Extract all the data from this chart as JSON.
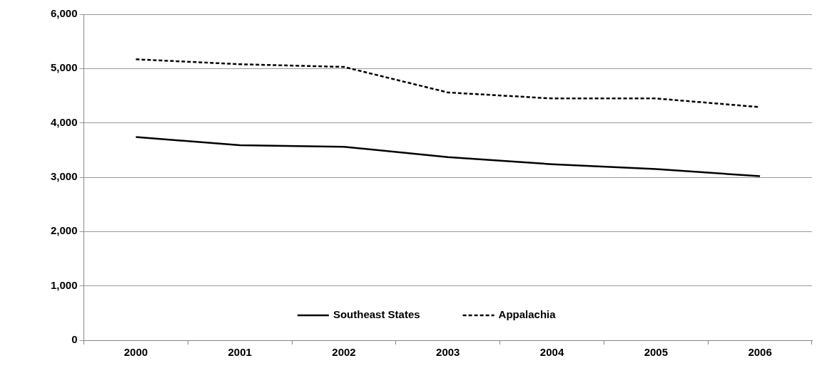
{
  "chart_data": {
    "type": "line",
    "categories": [
      "2000",
      "2001",
      "2002",
      "2003",
      "2004",
      "2005",
      "2006"
    ],
    "series": [
      {
        "name": "Southeast States",
        "color": "#000000",
        "line_style": "solid",
        "values": [
          3740,
          3590,
          3560,
          3370,
          3240,
          3150,
          3020
        ]
      },
      {
        "name": "Appalachia",
        "color": "#000000",
        "line_style": "dashed",
        "values": [
          5170,
          5080,
          5030,
          4560,
          4450,
          4450,
          4290
        ]
      }
    ],
    "ylim": [
      0,
      6000
    ],
    "yticks": [
      {
        "value": 0,
        "label": "0"
      },
      {
        "value": 1000,
        "label": "1,000"
      },
      {
        "value": 2000,
        "label": "2,000"
      },
      {
        "value": 3000,
        "label": "3,000"
      },
      {
        "value": 4000,
        "label": "4,000"
      },
      {
        "value": 5000,
        "label": "5,000"
      },
      {
        "value": 6000,
        "label": "6,000"
      }
    ],
    "grid": "y",
    "legend": "bottom",
    "marker": "none"
  }
}
